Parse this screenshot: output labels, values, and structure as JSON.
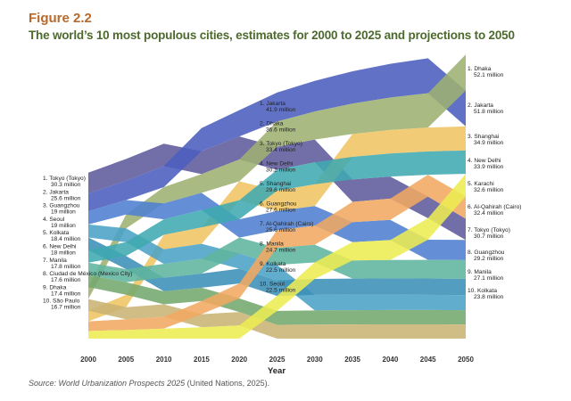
{
  "figure_label": "Figure 2.2",
  "source": {
    "italic": "Source: World Urbanization Prospects 2025",
    "plain": " (United Nations, 2025)."
  },
  "chart_data": {
    "type": "area",
    "title": "The world’s 10 most populous cities, estimates for 2000 to 2025 and projections to 2050",
    "xlabel": "Year",
    "ylabel": "",
    "x": [
      2000,
      2005,
      2010,
      2015,
      2020,
      2025,
      2030,
      2035,
      2040,
      2045,
      2050
    ],
    "x_ticks": [
      "2000",
      "2005",
      "2010",
      "2015",
      "2020",
      "2025",
      "2030",
      "2035",
      "2040",
      "2045",
      "2050"
    ],
    "units": "million",
    "series": [
      {
        "name": "Tokyo (Tokyo)",
        "color": "#5d5a9c",
        "values": [
          30.3,
          31.5,
          32.5,
          33.2,
          33.5,
          33.4,
          33.0,
          32.5,
          32.0,
          31.3,
          30.7
        ]
      },
      {
        "name": "Jakarta",
        "color": "#4b5fbe",
        "values": [
          25.6,
          28,
          30.5,
          33.5,
          38,
          41.9,
          44.5,
          46.8,
          48.8,
          50.5,
          51.8
        ]
      },
      {
        "name": "Dhaka",
        "color": "#9db072",
        "values": [
          17.4,
          20,
          23.5,
          27,
          31.5,
          36.6,
          40.5,
          44,
          47,
          49.8,
          52.1
        ]
      },
      {
        "name": "Shanghai",
        "color": "#efc462",
        "values": [
          15.5,
          18,
          21,
          24,
          27.5,
          29.6,
          31.5,
          33,
          34,
          34.6,
          34.9
        ]
      },
      {
        "name": "Guangzhou",
        "color": "#4f80d2",
        "values": [
          19,
          21,
          23,
          25,
          26.5,
          27.6,
          28.5,
          29,
          29.2,
          29.3,
          29.2
        ]
      },
      {
        "name": "Seoul",
        "color": "#4aa2c6",
        "values": [
          19,
          20,
          21,
          21.5,
          22,
          22.5,
          22.6,
          22.5,
          22.3,
          22.0,
          21.6
        ]
      },
      {
        "name": "Kolkata",
        "color": "#3b8fb8",
        "values": [
          18.4,
          19,
          19.8,
          20.5,
          21.5,
          22.5,
          23,
          23.3,
          23.5,
          23.7,
          23.8
        ]
      },
      {
        "name": "New Delhi",
        "color": "#3faab0",
        "values": [
          18,
          20,
          22.5,
          25,
          27.5,
          30.2,
          31.8,
          32.8,
          33.4,
          33.7,
          33.9
        ]
      },
      {
        "name": "Manila",
        "color": "#5fb59e",
        "values": [
          17.8,
          19,
          20,
          21.5,
          23,
          24.7,
          25.6,
          26.2,
          26.6,
          26.9,
          27.1
        ]
      },
      {
        "name": "Ciudad de México (Mexico City)",
        "color": "#74a96e",
        "values": [
          17.6,
          18.2,
          18.8,
          19.3,
          19.8,
          20.2,
          20.5,
          20.7,
          20.8,
          20.8,
          20.7
        ]
      },
      {
        "name": "São Paulo",
        "color": "#c9b374",
        "values": [
          16.7,
          17.5,
          18.2,
          18.9,
          19.5,
          20,
          20.3,
          20.5,
          20.6,
          20.6,
          20.5
        ]
      },
      {
        "name": "Al-Qahirah (Cairo)",
        "color": "#f0a862",
        "values": [
          14,
          15.5,
          17,
          19,
          21.5,
          25.6,
          27.5,
          29.3,
          30.7,
          31.7,
          32.4
        ]
      },
      {
        "name": "Karachi",
        "color": "#ecec52",
        "values": [
          11,
          12.5,
          14.5,
          16.5,
          19,
          21.5,
          24,
          26.5,
          29,
          31,
          32.6
        ]
      }
    ],
    "labels_2000": [
      {
        "rank": "1. Tokyo (Tokyo)",
        "value": "30.3 million"
      },
      {
        "rank": "2. Jakarta",
        "value": "25.6 million"
      },
      {
        "rank": "3. Guangzhou",
        "value": "19 million"
      },
      {
        "rank": "4. Seoul",
        "value": "19 million"
      },
      {
        "rank": "5. Kolkata",
        "value": "18.4 million"
      },
      {
        "rank": "6. New Delhi",
        "value": "18 million"
      },
      {
        "rank": "7. Manila",
        "value": "17.8 million"
      },
      {
        "rank": "8. Ciudad de México (Mexico City)",
        "value": "17.6 million"
      },
      {
        "rank": "9. Dhaka",
        "value": "17.4 million"
      },
      {
        "rank": "10. São Paulo",
        "value": "16.7 million"
      }
    ],
    "labels_2025": [
      {
        "rank": "1. Jakarta",
        "value": "41.9 million"
      },
      {
        "rank": "2. Dhaka",
        "value": "36.6 million"
      },
      {
        "rank": "3. Tokyo (Tokyo)",
        "value": "33.4 million"
      },
      {
        "rank": "4. New Delhi",
        "value": "30.2 million"
      },
      {
        "rank": "5. Shanghai",
        "value": "29.6 million"
      },
      {
        "rank": "6. Guangzhou",
        "value": "27.6 million"
      },
      {
        "rank": "7. Al-Qahirah (Cairo)",
        "value": "25.6 million"
      },
      {
        "rank": "8. Manila",
        "value": "24.7 million"
      },
      {
        "rank": "9. Kolkata",
        "value": "22.5 million"
      },
      {
        "rank": "10. Seoul",
        "value": "22.5 million"
      }
    ],
    "labels_2050": [
      {
        "rank": "1. Dhaka",
        "value": "52.1 million"
      },
      {
        "rank": "2. Jakarta",
        "value": "51.8 million"
      },
      {
        "rank": "3. Shanghai",
        "value": "34.9 million"
      },
      {
        "rank": "4. New Delhi",
        "value": "33.9 million"
      },
      {
        "rank": "5. Karachi",
        "value": "32.6 million"
      },
      {
        "rank": "6. Al-Qahirah (Cairo)",
        "value": "32.4 million"
      },
      {
        "rank": "7. Tokyo (Tokyo)",
        "value": "30.7 million"
      },
      {
        "rank": "8. Guangzhou",
        "value": "29.2 million"
      },
      {
        "rank": "9. Manila",
        "value": "27.1 million"
      },
      {
        "rank": "10. Kolkata",
        "value": "23.8 million"
      }
    ]
  }
}
